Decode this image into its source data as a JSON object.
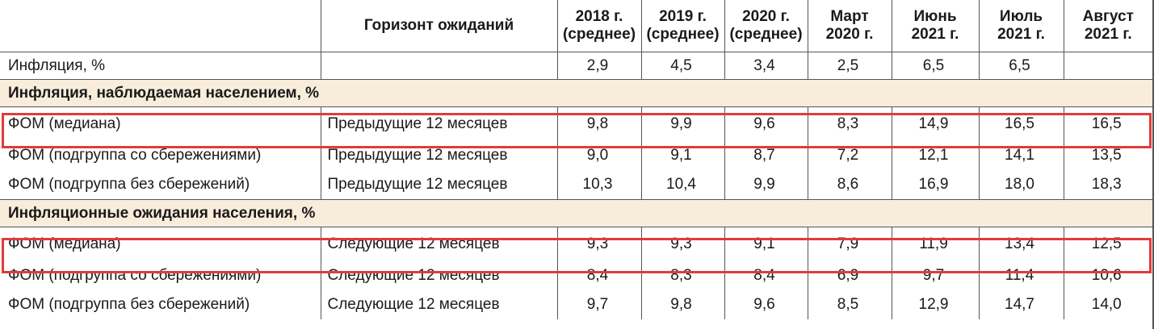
{
  "header": {
    "col_name": "",
    "col_horizon": "Горизонт ожиданий",
    "periods": [
      {
        "line1": "2018 г.",
        "line2": "(среднее)"
      },
      {
        "line1": "2019 г.",
        "line2": "(среднее)"
      },
      {
        "line1": "2020 г.",
        "line2": "(среднее)"
      },
      {
        "line1": "Март",
        "line2": "2020 г."
      },
      {
        "line1": "Июнь",
        "line2": "2021 г."
      },
      {
        "line1": "Июль",
        "line2": "2021 г."
      },
      {
        "line1": "Август",
        "line2": "2021 г."
      }
    ]
  },
  "inflation_row": {
    "label": "Инфляция, %",
    "horizon": "",
    "values": [
      "2,9",
      "4,5",
      "3,4",
      "2,5",
      "6,5",
      "6,5",
      ""
    ]
  },
  "sections": [
    {
      "title": "Инфляция, наблюдаемая населением, %",
      "rows": [
        {
          "label": "ФОМ (медиана)",
          "horizon": "Предыдущие 12 месяцев",
          "values": [
            "9,8",
            "9,9",
            "9,6",
            "8,3",
            "14,9",
            "16,5",
            "16,5"
          ]
        },
        {
          "label": "ФОМ (подгруппа со сбережениями)",
          "horizon": "Предыдущие 12 месяцев",
          "values": [
            "9,0",
            "9,1",
            "8,7",
            "7,2",
            "12,1",
            "14,1",
            "13,5"
          ]
        },
        {
          "label": "ФОМ (подгруппа без сбережений)",
          "horizon": "Предыдущие 12 месяцев",
          "values": [
            "10,3",
            "10,4",
            "9,9",
            "8,6",
            "16,9",
            "18,0",
            "18,3"
          ]
        }
      ]
    },
    {
      "title": "Инфляционные ожидания населения, %",
      "rows": [
        {
          "label": "ФОМ (медиана)",
          "horizon": "Следующие 12 месяцев",
          "values": [
            "9,3",
            "9,3",
            "9,1",
            "7,9",
            "11,9",
            "13,4",
            "12,5"
          ]
        },
        {
          "label": "ФОМ (подгруппа со сбережениями)",
          "horizon": "Следующие 12 месяцев",
          "values": [
            "8,4",
            "8,3",
            "8,4",
            "6,9",
            "9,7",
            "11,4",
            "10,6"
          ]
        },
        {
          "label": "ФОМ (подгруппа без сбережений)",
          "horizon": "Следующие 12 месяцев",
          "values": [
            "9,7",
            "9,8",
            "9,6",
            "8,5",
            "12,9",
            "14,7",
            "14,0"
          ]
        }
      ]
    }
  ],
  "highlight_color": "#e13b3b",
  "section_bg_color": "#f8ecdb"
}
